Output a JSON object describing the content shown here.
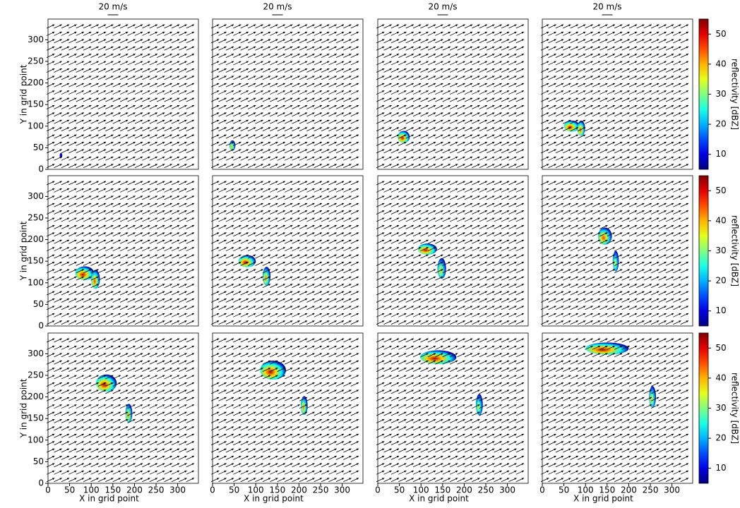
{
  "chart_data": [
    {
      "type": "quiver",
      "quiver_key": {
        "label": "20 m/s",
        "value": 20
      },
      "y_label": "Y in grid point",
      "xlim": [
        0,
        348
      ],
      "ylim": [
        0,
        348
      ],
      "yticks": [
        0,
        50,
        100,
        150,
        200,
        250,
        300
      ],
      "u": 15,
      "v": 7,
      "cells": [
        {
          "x": 30,
          "y": 32,
          "rx": 3,
          "ry": 6,
          "dbz": 12
        }
      ]
    },
    {
      "type": "quiver",
      "quiver_key": {
        "label": "20 m/s",
        "value": 20
      },
      "xlim": [
        0,
        348
      ],
      "ylim": [
        0,
        348
      ],
      "u": 15,
      "v": 7,
      "cells": [
        {
          "x": 46,
          "y": 55,
          "rx": 7,
          "ry": 12,
          "dbz": 40
        }
      ]
    },
    {
      "type": "quiver",
      "quiver_key": {
        "label": "20 m/s",
        "value": 20
      },
      "xlim": [
        0,
        348
      ],
      "ylim": [
        0,
        348
      ],
      "u": 15,
      "v": 7,
      "cells": [
        {
          "x": 60,
          "y": 75,
          "rx": 14,
          "ry": 14,
          "dbz": 52
        }
      ]
    },
    {
      "type": "quiver",
      "quiver_key": {
        "label": "20 m/s",
        "value": 20
      },
      "xlim": [
        0,
        348
      ],
      "ylim": [
        0,
        348
      ],
      "u": 15,
      "v": 7,
      "cells": [
        {
          "x": 68,
          "y": 100,
          "rx": 18,
          "ry": 13,
          "dbz": 52
        },
        {
          "x": 90,
          "y": 95,
          "rx": 9,
          "ry": 18,
          "dbz": 46
        }
      ]
    },
    {
      "type": "quiver",
      "y_label": "Y in grid point",
      "xlim": [
        0,
        348
      ],
      "ylim": [
        0,
        348
      ],
      "yticks": [
        0,
        50,
        100,
        150,
        200,
        250,
        300
      ],
      "u": 15,
      "v": 7,
      "cells": [
        {
          "x": 85,
          "y": 122,
          "rx": 22,
          "ry": 16,
          "dbz": 52
        },
        {
          "x": 110,
          "y": 108,
          "rx": 10,
          "ry": 22,
          "dbz": 46
        }
      ]
    },
    {
      "type": "quiver",
      "xlim": [
        0,
        348
      ],
      "ylim": [
        0,
        348
      ],
      "u": 15,
      "v": 7,
      "cells": [
        {
          "x": 80,
          "y": 150,
          "rx": 20,
          "ry": 14,
          "dbz": 52
        },
        {
          "x": 125,
          "y": 115,
          "rx": 9,
          "ry": 22,
          "dbz": 42
        }
      ]
    },
    {
      "type": "quiver",
      "xlim": [
        0,
        348
      ],
      "ylim": [
        0,
        348
      ],
      "u": 15,
      "v": 7,
      "cells": [
        {
          "x": 115,
          "y": 178,
          "rx": 22,
          "ry": 13,
          "dbz": 52
        },
        {
          "x": 148,
          "y": 133,
          "rx": 10,
          "ry": 24,
          "dbz": 38
        }
      ]
    },
    {
      "type": "quiver",
      "xlim": [
        0,
        348
      ],
      "ylim": [
        0,
        348
      ],
      "u": 15,
      "v": 7,
      "cells": [
        {
          "x": 145,
          "y": 208,
          "rx": 16,
          "ry": 20,
          "dbz": 46
        },
        {
          "x": 170,
          "y": 150,
          "rx": 7,
          "ry": 24,
          "dbz": 36
        }
      ]
    },
    {
      "type": "quiver",
      "x_label": "X in grid point",
      "y_label": "Y in grid point",
      "xlim": [
        0,
        348
      ],
      "ylim": [
        0,
        348
      ],
      "xticks": [
        0,
        50,
        100,
        150,
        200,
        250,
        300
      ],
      "yticks": [
        0,
        50,
        100,
        150,
        200,
        250,
        300
      ],
      "u": 15,
      "v": 7,
      "cells": [
        {
          "x": 135,
          "y": 232,
          "rx": 24,
          "ry": 20,
          "dbz": 52
        },
        {
          "x": 187,
          "y": 162,
          "rx": 8,
          "ry": 22,
          "dbz": 42
        }
      ]
    },
    {
      "type": "quiver",
      "x_label": "X in grid point",
      "xlim": [
        0,
        348
      ],
      "ylim": [
        0,
        348
      ],
      "xticks": [
        0,
        50,
        100,
        150,
        200,
        250,
        300
      ],
      "u": 15,
      "v": 7,
      "cells": [
        {
          "x": 140,
          "y": 262,
          "rx": 30,
          "ry": 22,
          "dbz": 52
        },
        {
          "x": 212,
          "y": 180,
          "rx": 8,
          "ry": 22,
          "dbz": 42
        }
      ]
    },
    {
      "type": "quiver",
      "x_label": "X in grid point",
      "xlim": [
        0,
        348
      ],
      "ylim": [
        0,
        348
      ],
      "xticks": [
        0,
        50,
        100,
        150,
        200,
        250,
        300
      ],
      "u": 15,
      "v": 7,
      "cells": [
        {
          "x": 140,
          "y": 292,
          "rx": 42,
          "ry": 16,
          "dbz": 53
        },
        {
          "x": 235,
          "y": 182,
          "rx": 8,
          "ry": 25,
          "dbz": 36
        }
      ]
    },
    {
      "type": "quiver",
      "x_label": "X in grid point",
      "xlim": [
        0,
        348
      ],
      "ylim": [
        0,
        348
      ],
      "xticks": [
        0,
        50,
        100,
        150,
        200,
        250,
        300
      ],
      "u": 15,
      "v": 7,
      "cells": [
        {
          "x": 150,
          "y": 312,
          "rx": 50,
          "ry": 14,
          "dbz": 53
        },
        {
          "x": 255,
          "y": 200,
          "rx": 8,
          "ry": 25,
          "dbz": 38
        }
      ]
    },
    {
      "type": "colorbar",
      "label": "reflectivity [dBZ]",
      "ylim": [
        5,
        55
      ],
      "yticks": [
        10,
        20,
        30,
        40,
        50
      ]
    },
    {
      "type": "colorbar",
      "label": "reflectivity [dBZ]",
      "ylim": [
        5,
        55
      ],
      "yticks": [
        10,
        20,
        30,
        40,
        50
      ]
    },
    {
      "type": "colorbar",
      "label": "reflectivity [dBZ]",
      "ylim": [
        5,
        55
      ],
      "yticks": [
        10,
        20,
        30,
        40,
        50
      ]
    }
  ]
}
